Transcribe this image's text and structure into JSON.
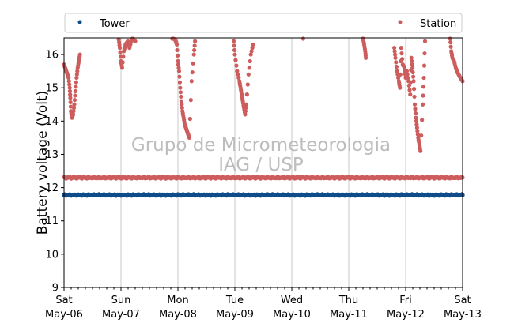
{
  "chart_data": {
    "type": "scatter",
    "title": "",
    "xlabel": "",
    "ylabel": "Battery voltage (Volt)",
    "ylim": [
      9,
      16.5
    ],
    "yticks": [
      9,
      10,
      11,
      12,
      13,
      14,
      15,
      16
    ],
    "xlim": [
      0,
      7
    ],
    "x_unit": "days from Sat May-06",
    "x_tick_labels": [
      {
        "day": "Sat",
        "date": "May-06"
      },
      {
        "day": "Sun",
        "date": "May-07"
      },
      {
        "day": "Mon",
        "date": "May-08"
      },
      {
        "day": "Tue",
        "date": "May-09"
      },
      {
        "day": "Wed",
        "date": "May-10"
      },
      {
        "day": "Thu",
        "date": "May-11"
      },
      {
        "day": "Fri",
        "date": "May-12"
      },
      {
        "day": "Sat",
        "date": "May-13"
      }
    ],
    "grid": "vertical at day ticks",
    "legend_position": "top (outside plot)",
    "watermark": [
      "Grupo de Micrometeorologia",
      "IAG / USP"
    ],
    "series": [
      {
        "name": "Tower",
        "color": "#0f4c8a",
        "marker": "dot",
        "baseline": 11.78,
        "points": [
          [
            0.0,
            11.77
          ],
          [
            0.5,
            11.78
          ],
          [
            1.0,
            11.77
          ],
          [
            1.5,
            11.78
          ],
          [
            2.0,
            11.8
          ],
          [
            2.5,
            11.79
          ],
          [
            3.0,
            11.78
          ],
          [
            3.5,
            11.78
          ],
          [
            4.0,
            11.78
          ],
          [
            4.5,
            11.78
          ],
          [
            5.0,
            11.77
          ],
          [
            5.5,
            11.78
          ],
          [
            6.0,
            11.78
          ],
          [
            6.5,
            11.77
          ],
          [
            7.0,
            11.77
          ]
        ]
      },
      {
        "name": "Station",
        "color": "#cd5c5c",
        "marker": "dot",
        "baseline": 12.3,
        "points": [
          [
            0.0,
            15.7
          ],
          [
            0.02,
            15.6
          ],
          [
            0.04,
            15.5
          ],
          [
            0.06,
            15.4
          ],
          [
            0.08,
            15.3
          ],
          [
            0.1,
            15.0
          ],
          [
            0.11,
            14.7
          ],
          [
            0.12,
            14.3
          ],
          [
            0.14,
            14.1
          ],
          [
            0.16,
            14.2
          ],
          [
            0.18,
            14.5
          ],
          [
            0.2,
            14.9
          ],
          [
            0.22,
            15.3
          ],
          [
            0.24,
            15.6
          ],
          [
            0.26,
            15.8
          ],
          [
            0.28,
            16.0
          ],
          [
            0.96,
            16.45
          ],
          [
            0.98,
            16.2
          ],
          [
            1.0,
            15.8
          ],
          [
            1.02,
            15.6
          ],
          [
            1.05,
            16.1
          ],
          [
            1.08,
            16.3
          ],
          [
            1.12,
            16.4
          ],
          [
            1.15,
            16.2
          ],
          [
            1.2,
            16.5
          ],
          [
            1.25,
            16.4
          ],
          [
            1.9,
            16.5
          ],
          [
            1.95,
            16.45
          ],
          [
            1.98,
            16.3
          ],
          [
            2.0,
            15.8
          ],
          [
            2.02,
            15.5
          ],
          [
            2.04,
            15.0
          ],
          [
            2.06,
            14.6
          ],
          [
            2.08,
            14.3
          ],
          [
            2.1,
            14.1
          ],
          [
            2.12,
            13.9
          ],
          [
            2.14,
            13.8
          ],
          [
            2.16,
            13.7
          ],
          [
            2.18,
            13.6
          ],
          [
            2.2,
            13.5
          ],
          [
            2.24,
            15.2
          ],
          [
            2.28,
            16.0
          ],
          [
            2.3,
            16.4
          ],
          [
            2.98,
            16.4
          ],
          [
            3.0,
            16.0
          ],
          [
            3.04,
            15.5
          ],
          [
            3.08,
            15.2
          ],
          [
            3.1,
            15.0
          ],
          [
            3.12,
            14.8
          ],
          [
            3.14,
            14.6
          ],
          [
            3.16,
            14.4
          ],
          [
            3.18,
            14.2
          ],
          [
            3.2,
            14.5
          ],
          [
            3.24,
            15.4
          ],
          [
            3.28,
            16.0
          ],
          [
            3.32,
            16.3
          ],
          [
            4.2,
            16.5
          ],
          [
            5.25,
            16.5
          ],
          [
            5.27,
            16.3
          ],
          [
            5.29,
            16.1
          ],
          [
            5.3,
            15.9
          ],
          [
            5.8,
            16.2
          ],
          [
            5.82,
            15.9
          ],
          [
            5.85,
            15.5
          ],
          [
            5.88,
            15.2
          ],
          [
            5.9,
            15.0
          ],
          [
            5.92,
            16.2
          ],
          [
            5.95,
            15.7
          ],
          [
            5.98,
            15.6
          ],
          [
            6.0,
            15.3
          ],
          [
            6.02,
            15.5
          ],
          [
            6.05,
            15.2
          ],
          [
            6.08,
            14.8
          ],
          [
            6.1,
            15.9
          ],
          [
            6.12,
            15.6
          ],
          [
            6.14,
            15.2
          ],
          [
            6.16,
            14.5
          ],
          [
            6.18,
            14.1
          ],
          [
            6.2,
            13.8
          ],
          [
            6.22,
            13.5
          ],
          [
            6.24,
            13.3
          ],
          [
            6.26,
            13.1
          ],
          [
            6.3,
            14.5
          ],
          [
            6.32,
            15.3
          ],
          [
            6.34,
            16.4
          ],
          [
            6.78,
            16.5
          ],
          [
            6.8,
            16.1
          ],
          [
            6.82,
            15.9
          ],
          [
            6.85,
            15.8
          ],
          [
            6.88,
            15.6
          ],
          [
            6.9,
            15.5
          ],
          [
            6.93,
            15.4
          ],
          [
            6.96,
            15.3
          ],
          [
            7.0,
            15.2
          ]
        ]
      }
    ]
  }
}
